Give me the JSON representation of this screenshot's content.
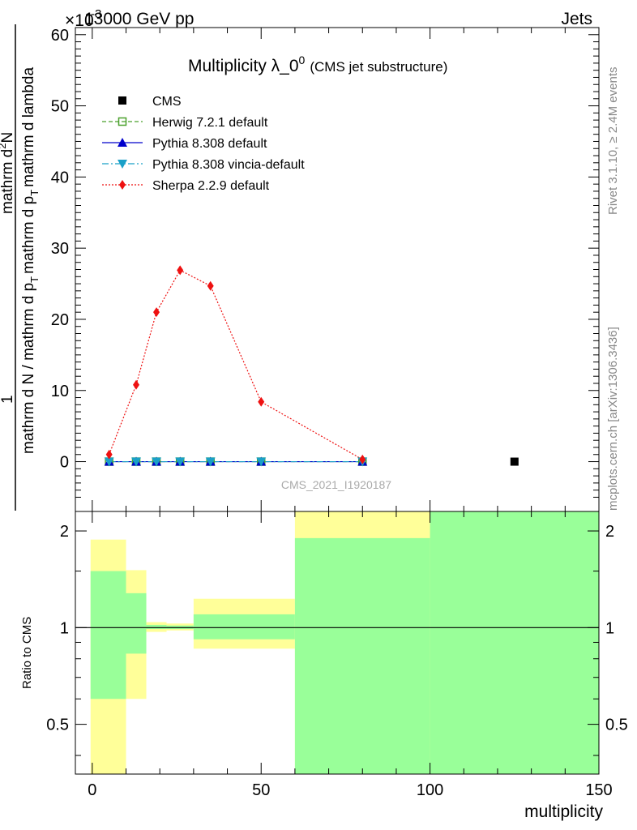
{
  "header": {
    "energy_label": "13000 GeV pp",
    "exponent_label": "×10",
    "exponent_power": "-3",
    "process_label": "Jets"
  },
  "side_notes": {
    "rivet": "Rivet 3.1.10, ≥ 2.4M events",
    "mcplots": "mcplots.cern.ch [arXiv:1306.3436]"
  },
  "chart_data": [
    {
      "type": "scatter",
      "title": "Multiplicity λ_0",
      "title_sup": "0",
      "title_suffix": "(CMS jet substructure)",
      "analysis_id": "CMS_2021_I1920187",
      "ylabel_numerator": "1",
      "ylabel_parts": [
        "mathrm d N / mathrm d p",
        "T",
        "mathrm d p",
        "T",
        "mathrm d lambda"
      ],
      "ylabel_num_line": "mathrm d",
      "ylabel_num_sup": "2",
      "ylabel_num_tail": "N",
      "xlim": [
        -5,
        150
      ],
      "ylim": [
        -7,
        61
      ],
      "y_ticks": [
        0,
        10,
        20,
        30,
        40,
        50,
        60
      ],
      "legend_position": "top-left",
      "colors": {
        "CMS": "#000000",
        "Herwig": "#4aa02c",
        "Pythia": "#0000cc",
        "Vincia": "#1aa0c8",
        "Sherpa": "#ee1111"
      },
      "series": [
        {
          "name": "CMS",
          "marker": "square",
          "x": [
            125
          ],
          "y": [
            0
          ]
        },
        {
          "name": "Herwig 7.2.1 default",
          "marker": "open-square",
          "style": "dashed",
          "x": [
            5,
            13,
            19,
            26,
            35,
            50,
            80
          ],
          "y": [
            0,
            0,
            0,
            0,
            0,
            0,
            0
          ]
        },
        {
          "name": "Pythia 8.308 default",
          "marker": "triangle-up",
          "style": "solid",
          "x": [
            5,
            13,
            19,
            26,
            35,
            50,
            80
          ],
          "y": [
            0,
            0,
            0,
            0,
            0,
            0,
            0
          ]
        },
        {
          "name": "Pythia 8.308 vincia-default",
          "marker": "triangle-down",
          "style": "dashdot",
          "x": [
            5,
            13,
            19,
            26,
            35,
            50,
            80
          ],
          "y": [
            0,
            0,
            0,
            0,
            0,
            0,
            0
          ]
        },
        {
          "name": "Sherpa 2.2.9 default",
          "marker": "diamond",
          "style": "dotted",
          "x": [
            5,
            13,
            19,
            26,
            35,
            50,
            80
          ],
          "y": [
            1.0,
            10.8,
            21.0,
            26.9,
            24.7,
            8.4,
            0.3
          ]
        }
      ]
    },
    {
      "type": "area",
      "ylabel": "Ratio to CMS",
      "xlabel": "multiplicity",
      "xlim": [
        -5,
        150
      ],
      "ylim": [
        0.35,
        2.3
      ],
      "log_y": true,
      "x_ticks": [
        0,
        50,
        100,
        150
      ],
      "y_ticks": [
        0.5,
        1,
        2
      ],
      "reference_line": 1,
      "bands": [
        {
          "x": [
            -0.5,
            10
          ],
          "yellow": [
            0.35,
            1.88
          ],
          "green": [
            0.6,
            1.5
          ]
        },
        {
          "x": [
            10,
            16
          ],
          "yellow": [
            0.6,
            1.51
          ],
          "green": [
            0.83,
            1.28
          ]
        },
        {
          "x": [
            16,
            22
          ],
          "yellow": [
            0.97,
            1.04
          ],
          "green": [
            0.99,
            1.02
          ]
        },
        {
          "x": [
            22,
            30
          ],
          "yellow": [
            0.98,
            1.03
          ],
          "green": [
            0.99,
            1.015
          ]
        },
        {
          "x": [
            30,
            60
          ],
          "yellow": [
            0.86,
            1.23
          ],
          "green": [
            0.92,
            1.1
          ]
        },
        {
          "x": [
            60,
            100
          ],
          "yellow": [
            0.35,
            2.3
          ],
          "green": [
            0.35,
            1.9
          ]
        },
        {
          "x": [
            100,
            150
          ],
          "yellow": [
            0.35,
            2.3
          ],
          "green": [
            0.35,
            2.3
          ]
        }
      ]
    }
  ]
}
